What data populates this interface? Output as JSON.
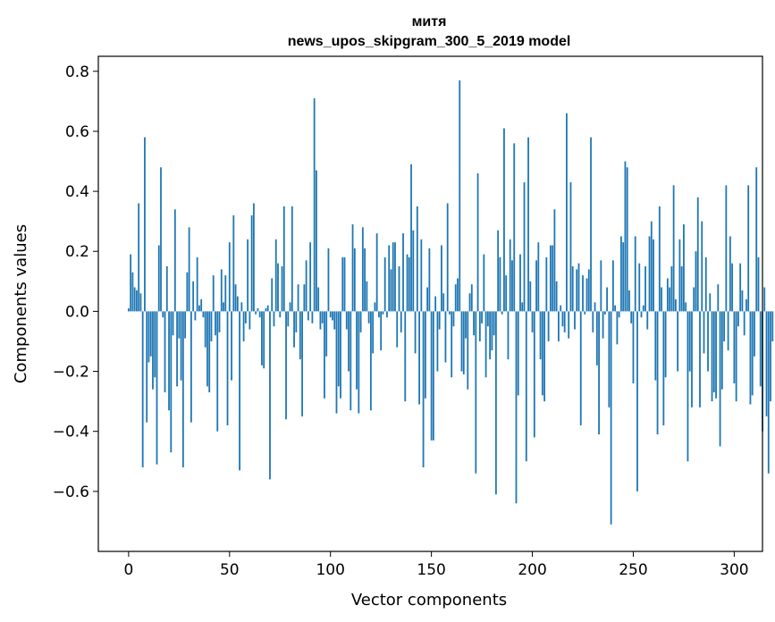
{
  "chart_data": {
    "type": "bar",
    "title": "митя",
    "subtitle": "news_upos_skipgram_300_5_2019 model",
    "xlabel": "Vector components",
    "ylabel": "Components values",
    "xlim": [
      -15,
      314
    ],
    "ylim": [
      -0.8,
      0.85
    ],
    "xticks": [
      0,
      50,
      100,
      150,
      200,
      250,
      300
    ],
    "yticks": [
      -0.6,
      -0.4,
      -0.2,
      0.0,
      0.2,
      0.4,
      0.6,
      0.8
    ],
    "ytick_labels": [
      "−0.6",
      "−0.4",
      "−0.2",
      "0.0",
      "0.2",
      "0.4",
      "0.6",
      "0.8"
    ],
    "grid": false,
    "legend": "none",
    "bar_color": "#1f77b4",
    "values": [
      0.01,
      0.19,
      0.13,
      0.08,
      0.07,
      0.36,
      0.06,
      -0.52,
      0.58,
      -0.37,
      -0.17,
      -0.15,
      -0.26,
      -0.22,
      -0.51,
      0.22,
      0.48,
      -0.02,
      -0.27,
      0.15,
      -0.33,
      -0.47,
      -0.08,
      0.34,
      -0.25,
      -0.09,
      -0.23,
      -0.52,
      -0.09,
      0.13,
      0.28,
      -0.37,
      0.1,
      -0.03,
      0.18,
      0.02,
      0.04,
      -0.02,
      -0.12,
      -0.25,
      -0.27,
      -0.1,
      0.12,
      -0.08,
      -0.4,
      -0.07,
      0.14,
      0.03,
      0.12,
      -0.38,
      0.23,
      -0.23,
      0.32,
      0.09,
      0.05,
      -0.53,
      0.03,
      -0.1,
      -0.04,
      0.24,
      -0.06,
      0.32,
      0.36,
      -0.01,
      0.01,
      -0.02,
      -0.18,
      -0.19,
      0.01,
      0.02,
      -0.56,
      0.11,
      -0.05,
      0.24,
      0.16,
      -0.02,
      0.15,
      0.35,
      -0.36,
      -0.05,
      0.03,
      0.35,
      -0.12,
      -0.07,
      0.09,
      -0.16,
      -0.35,
      0.09,
      0.17,
      -0.03,
      0.23,
      -0.04,
      0.71,
      0.47,
      0.08,
      -0.06,
      -0.04,
      -0.29,
      -0.15,
      0.21,
      -0.02,
      -0.03,
      -0.06,
      -0.34,
      -0.25,
      -0.29,
      0.18,
      0.18,
      -0.06,
      -0.2,
      -0.33,
      0.29,
      0.21,
      -0.26,
      -0.34,
      -0.07,
      0.28,
      0.21,
      0.1,
      -0.04,
      -0.33,
      -0.14,
      0.03,
      0.26,
      -0.02,
      -0.13,
      -0.01,
      0.18,
      -0.02,
      0.22,
      0.14,
      0.23,
      0.23,
      -0.12,
      0.15,
      -0.07,
      0.26,
      -0.3,
      0.19,
      0.18,
      0.49,
      0.27,
      -0.14,
      0.35,
      -0.31,
      0.24,
      -0.52,
      -0.29,
      0.08,
      0.21,
      -0.43,
      -0.43,
      0.05,
      -0.2,
      -0.06,
      0.22,
      0.06,
      -0.17,
      0.36,
      -0.01,
      -0.22,
      -0.05,
      0.09,
      0.11,
      0.77,
      -0.2,
      -0.21,
      -0.09,
      -0.26,
      0.06,
      0.09,
      -0.08,
      -0.54,
      0.46,
      -0.1,
      -0.04,
      0.19,
      -0.22,
      -0.05,
      -0.16,
      -0.13,
      -0.08,
      -0.61,
      0.27,
      0.18,
      -0.01,
      0.61,
      0.12,
      -0.16,
      0.24,
      0.17,
      0.56,
      -0.64,
      -0.28,
      0.19,
      0.03,
      0.43,
      -0.5,
      0.58,
      0.1,
      -0.07,
      -0.42,
      0.17,
      0.23,
      -0.16,
      -0.28,
      -0.3,
      0.18,
      -0.1,
      0.22,
      0.22,
      0.34,
      0.1,
      -0.1,
      0.02,
      -0.05,
      -0.07,
      0.66,
      -0.09,
      0.43,
      0.15,
      -0.06,
      0.14,
      0.16,
      -0.38,
      0.12,
      -0.01,
      0.11,
      0.14,
      0.58,
      -0.07,
      0.03,
      -0.18,
      -0.41,
      0.17,
      -0.09,
      -0.01,
      0.08,
      -0.32,
      -0.71,
      0.17,
      0.02,
      -0.11,
      -0.02,
      0.25,
      0.23,
      0.5,
      0.48,
      0.07,
      -0.04,
      -0.24,
      0.25,
      -0.6,
      0.16,
      -0.02,
      0.02,
      0.15,
      -0.06,
      0.25,
      0.3,
      0.24,
      -0.23,
      -0.41,
      0.35,
      0.08,
      -0.38,
      -0.22,
      0.11,
      0.08,
      0.15,
      0.42,
      0.04,
      -0.2,
      0.24,
      0.15,
      0.29,
      0.03,
      -0.5,
      -0.2,
      -0.32,
      0.08,
      0.2,
      0.38,
      -0.32,
      0.3,
      -0.14,
      0.18,
      -0.2,
      0.06,
      -0.3,
      -0.27,
      -0.29,
      0.09,
      -0.45,
      -0.26,
      -0.1,
      0.42,
      -0.13,
      0.25,
      0.16,
      -0.24,
      -0.3,
      -0.05,
      0.16,
      0.07,
      -0.08,
      0.04,
      0.42,
      -0.31,
      -0.28,
      -0.15,
      0.48,
      0.18,
      -0.25,
      -0.4,
      0.08,
      -0.35,
      -0.54,
      -0.3,
      -0.1
    ]
  }
}
